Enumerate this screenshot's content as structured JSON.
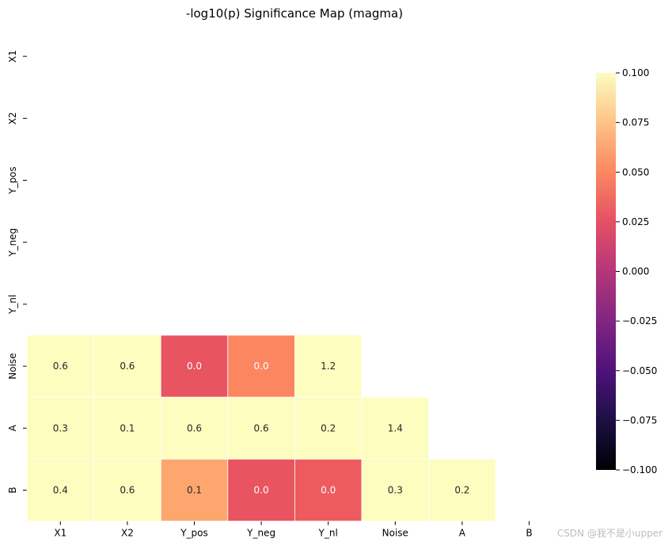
{
  "chart_data": {
    "type": "heatmap",
    "title": "-log10(p) Significance Map (magma)",
    "colormap": "magma",
    "x_categories": [
      "X1",
      "X2",
      "Y_pos",
      "Y_neg",
      "Y_nl",
      "Noise",
      "A",
      "B"
    ],
    "y_categories": [
      "X1",
      "X2",
      "Y_pos",
      "Y_neg",
      "Y_nl",
      "Noise",
      "A",
      "B"
    ],
    "rows": [
      {
        "label": "Noise",
        "values": [
          0.6,
          0.6,
          0.0,
          0.0,
          1.2
        ]
      },
      {
        "label": "A",
        "values": [
          0.3,
          0.1,
          0.6,
          0.6,
          0.2,
          1.4
        ]
      },
      {
        "label": "B",
        "values": [
          0.4,
          0.6,
          0.1,
          0.0,
          0.0,
          0.3,
          0.2
        ]
      }
    ],
    "cell_colors": {
      "Noise": [
        "#fcfdbf",
        "#fcfdbf",
        "#e85460",
        "#fb8660",
        "#fcfdbf"
      ],
      "A": [
        "#fcfdbf",
        "#fcfdbf",
        "#fcfdbf",
        "#fcfdbf",
        "#fcfdbf",
        "#fcfdbf"
      ],
      "B": [
        "#fcfdbf",
        "#fcfdbf",
        "#fda76e",
        "#e85460",
        "#ee5b5e",
        "#fcfdbf",
        "#fcfdbf"
      ]
    },
    "colorbar": {
      "min": -0.1,
      "max": 0.1,
      "ticks": [
        "0.100",
        "0.075",
        "0.050",
        "0.025",
        "0.000",
        "−0.025",
        "−0.050",
        "−0.075",
        "−0.100"
      ]
    },
    "watermark": "CSDN @我不是小upper"
  }
}
